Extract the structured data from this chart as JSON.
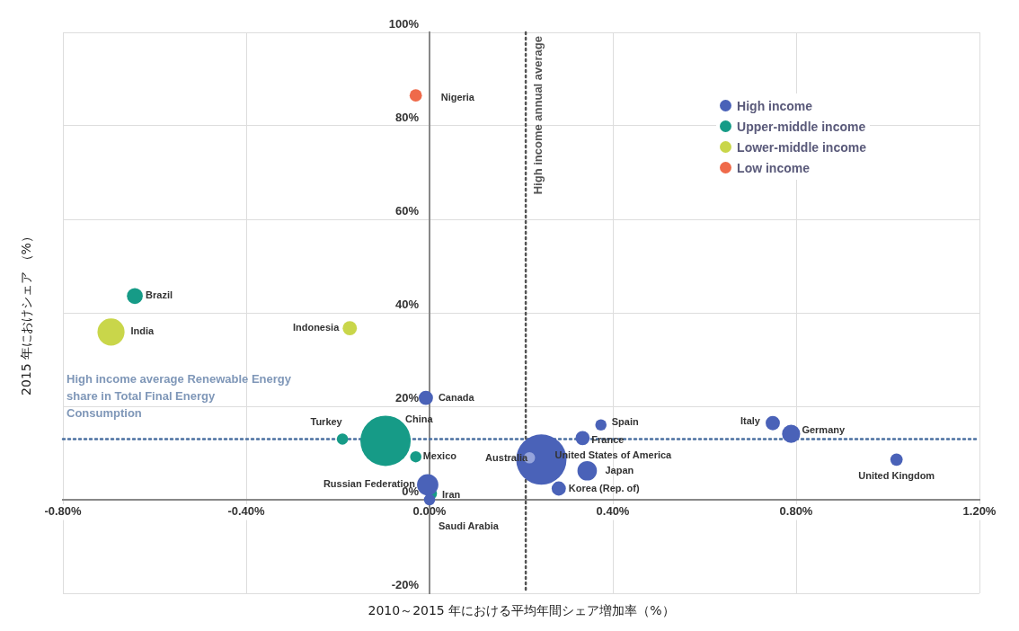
{
  "chart_data": {
    "type": "bubble",
    "xlabel": "2010～2015 年における平均年間シェア増加率（%）",
    "ylabel": "2015 年におけシェア （%）",
    "xlim": [
      -0.8,
      1.2
    ],
    "xticks": [
      {
        "value": -0.8,
        "label": "-0.80%"
      },
      {
        "value": -0.4,
        "label": "-0.40%"
      },
      {
        "value": 0,
        "label": "0.00%"
      },
      {
        "value": 0.4,
        "label": "0.40%"
      },
      {
        "value": 0.8,
        "label": "0.80%"
      },
      {
        "value": 1.2,
        "label": "1.20%"
      }
    ],
    "ylim": [
      -20,
      100
    ],
    "yticks": [
      {
        "value": -20,
        "label": "-20%"
      },
      {
        "value": 0,
        "label": "0%"
      },
      {
        "value": 20,
        "label": "20%"
      },
      {
        "value": 40,
        "label": "40%"
      },
      {
        "value": 60,
        "label": "60%"
      },
      {
        "value": 80,
        "label": "80%"
      },
      {
        "value": 100,
        "label": "100%"
      }
    ],
    "grid": true,
    "legend": "top right",
    "marker": "circle",
    "series": [
      {
        "name": "High income",
        "color": "#4a62b8",
        "colors": [
          "#4a62b8",
          "#4a62b8",
          "#4a62b8",
          "#4a62b8",
          "#95a4dc",
          "#4a62b8",
          "#4a62b8",
          "#4a62b8",
          "#4a62b8",
          "#4a62b8",
          "#4a62b8",
          "#4a62b8"
        ],
        "x": [
          -0.008,
          -0.004,
          0,
          0.244,
          0.218,
          0.282,
          0.344,
          0.334,
          0.374,
          0.749,
          0.789,
          1.019
        ],
        "values": [
          21.8,
          3.2,
          0,
          8.6,
          9,
          2.4,
          6.2,
          13.2,
          16,
          16.4,
          14.1,
          8.6
        ],
        "sizes": [
          0.08,
          0.18,
          0.05,
          1,
          0.05,
          0.08,
          0.15,
          0.08,
          0.05,
          0.08,
          0.13,
          0.06
        ]
      },
      {
        "name": "Upper-middle income",
        "color": "#169b87",
        "x": [
          -0.643,
          -0.19,
          -0.096,
          -0.03,
          0.004
        ],
        "values": [
          43.6,
          13,
          12.6,
          9.2,
          1.3
        ],
        "sizes": [
          0.1,
          0.05,
          1,
          0.05,
          0.05
        ]
      },
      {
        "name": "Lower-middle income",
        "color": "#c9d64a",
        "x": [
          -0.695,
          -0.174
        ],
        "values": [
          35.9,
          36.7
        ],
        "sizes": [
          0.29,
          0.08
        ]
      },
      {
        "name": "Low income",
        "color": "#ef6a4a",
        "x": [
          -0.03
        ],
        "values": [
          86.5
        ],
        "sizes": [
          0.06
        ]
      }
    ],
    "ref_lines": [
      {
        "axis": "y",
        "value": 13,
        "label": "High income average Renewable Energy share in Total Final Energy Consumption",
        "color": "#4a6fa0",
        "line_style": "dotted"
      },
      {
        "axis": "x",
        "value": 0.21,
        "label": "High income annual average",
        "color": "#555555",
        "line_style": "dotted"
      }
    ],
    "annotations": [
      {
        "text": "Nigeria",
        "x": -0.03,
        "y": 86.5
      },
      {
        "text": "Brazil",
        "x": -0.643,
        "y": 43.6
      },
      {
        "text": "India",
        "x": -0.695,
        "y": 35.9
      },
      {
        "text": "Indonesia",
        "x": -0.174,
        "y": 36.7
      },
      {
        "text": "Canada",
        "x": -0.008,
        "y": 21.8
      },
      {
        "text": "Turkey",
        "x": -0.19,
        "y": 13
      },
      {
        "text": "China",
        "x": -0.096,
        "y": 12.6
      },
      {
        "text": "Mexico",
        "x": -0.03,
        "y": 9.2
      },
      {
        "text": "Russian Federation",
        "x": -0.004,
        "y": 3.2
      },
      {
        "text": "Iran",
        "x": 0.004,
        "y": 1.3
      },
      {
        "text": "Saudi Arabia",
        "x": 0,
        "y": 0
      },
      {
        "text": "Australia",
        "x": 0.218,
        "y": 9
      },
      {
        "text": "United States of America",
        "x": 0.244,
        "y": 8.6
      },
      {
        "text": "Korea (Rep. of)",
        "x": 0.282,
        "y": 2.4
      },
      {
        "text": "Japan",
        "x": 0.344,
        "y": 6.2
      },
      {
        "text": "France",
        "x": 0.334,
        "y": 13.2
      },
      {
        "text": "Spain",
        "x": 0.374,
        "y": 16
      },
      {
        "text": "Italy",
        "x": 0.749,
        "y": 16.4
      },
      {
        "text": "Germany",
        "x": 0.789,
        "y": 14.1
      },
      {
        "text": "United Kingdom",
        "x": 1.019,
        "y": 8.6
      }
    ]
  }
}
